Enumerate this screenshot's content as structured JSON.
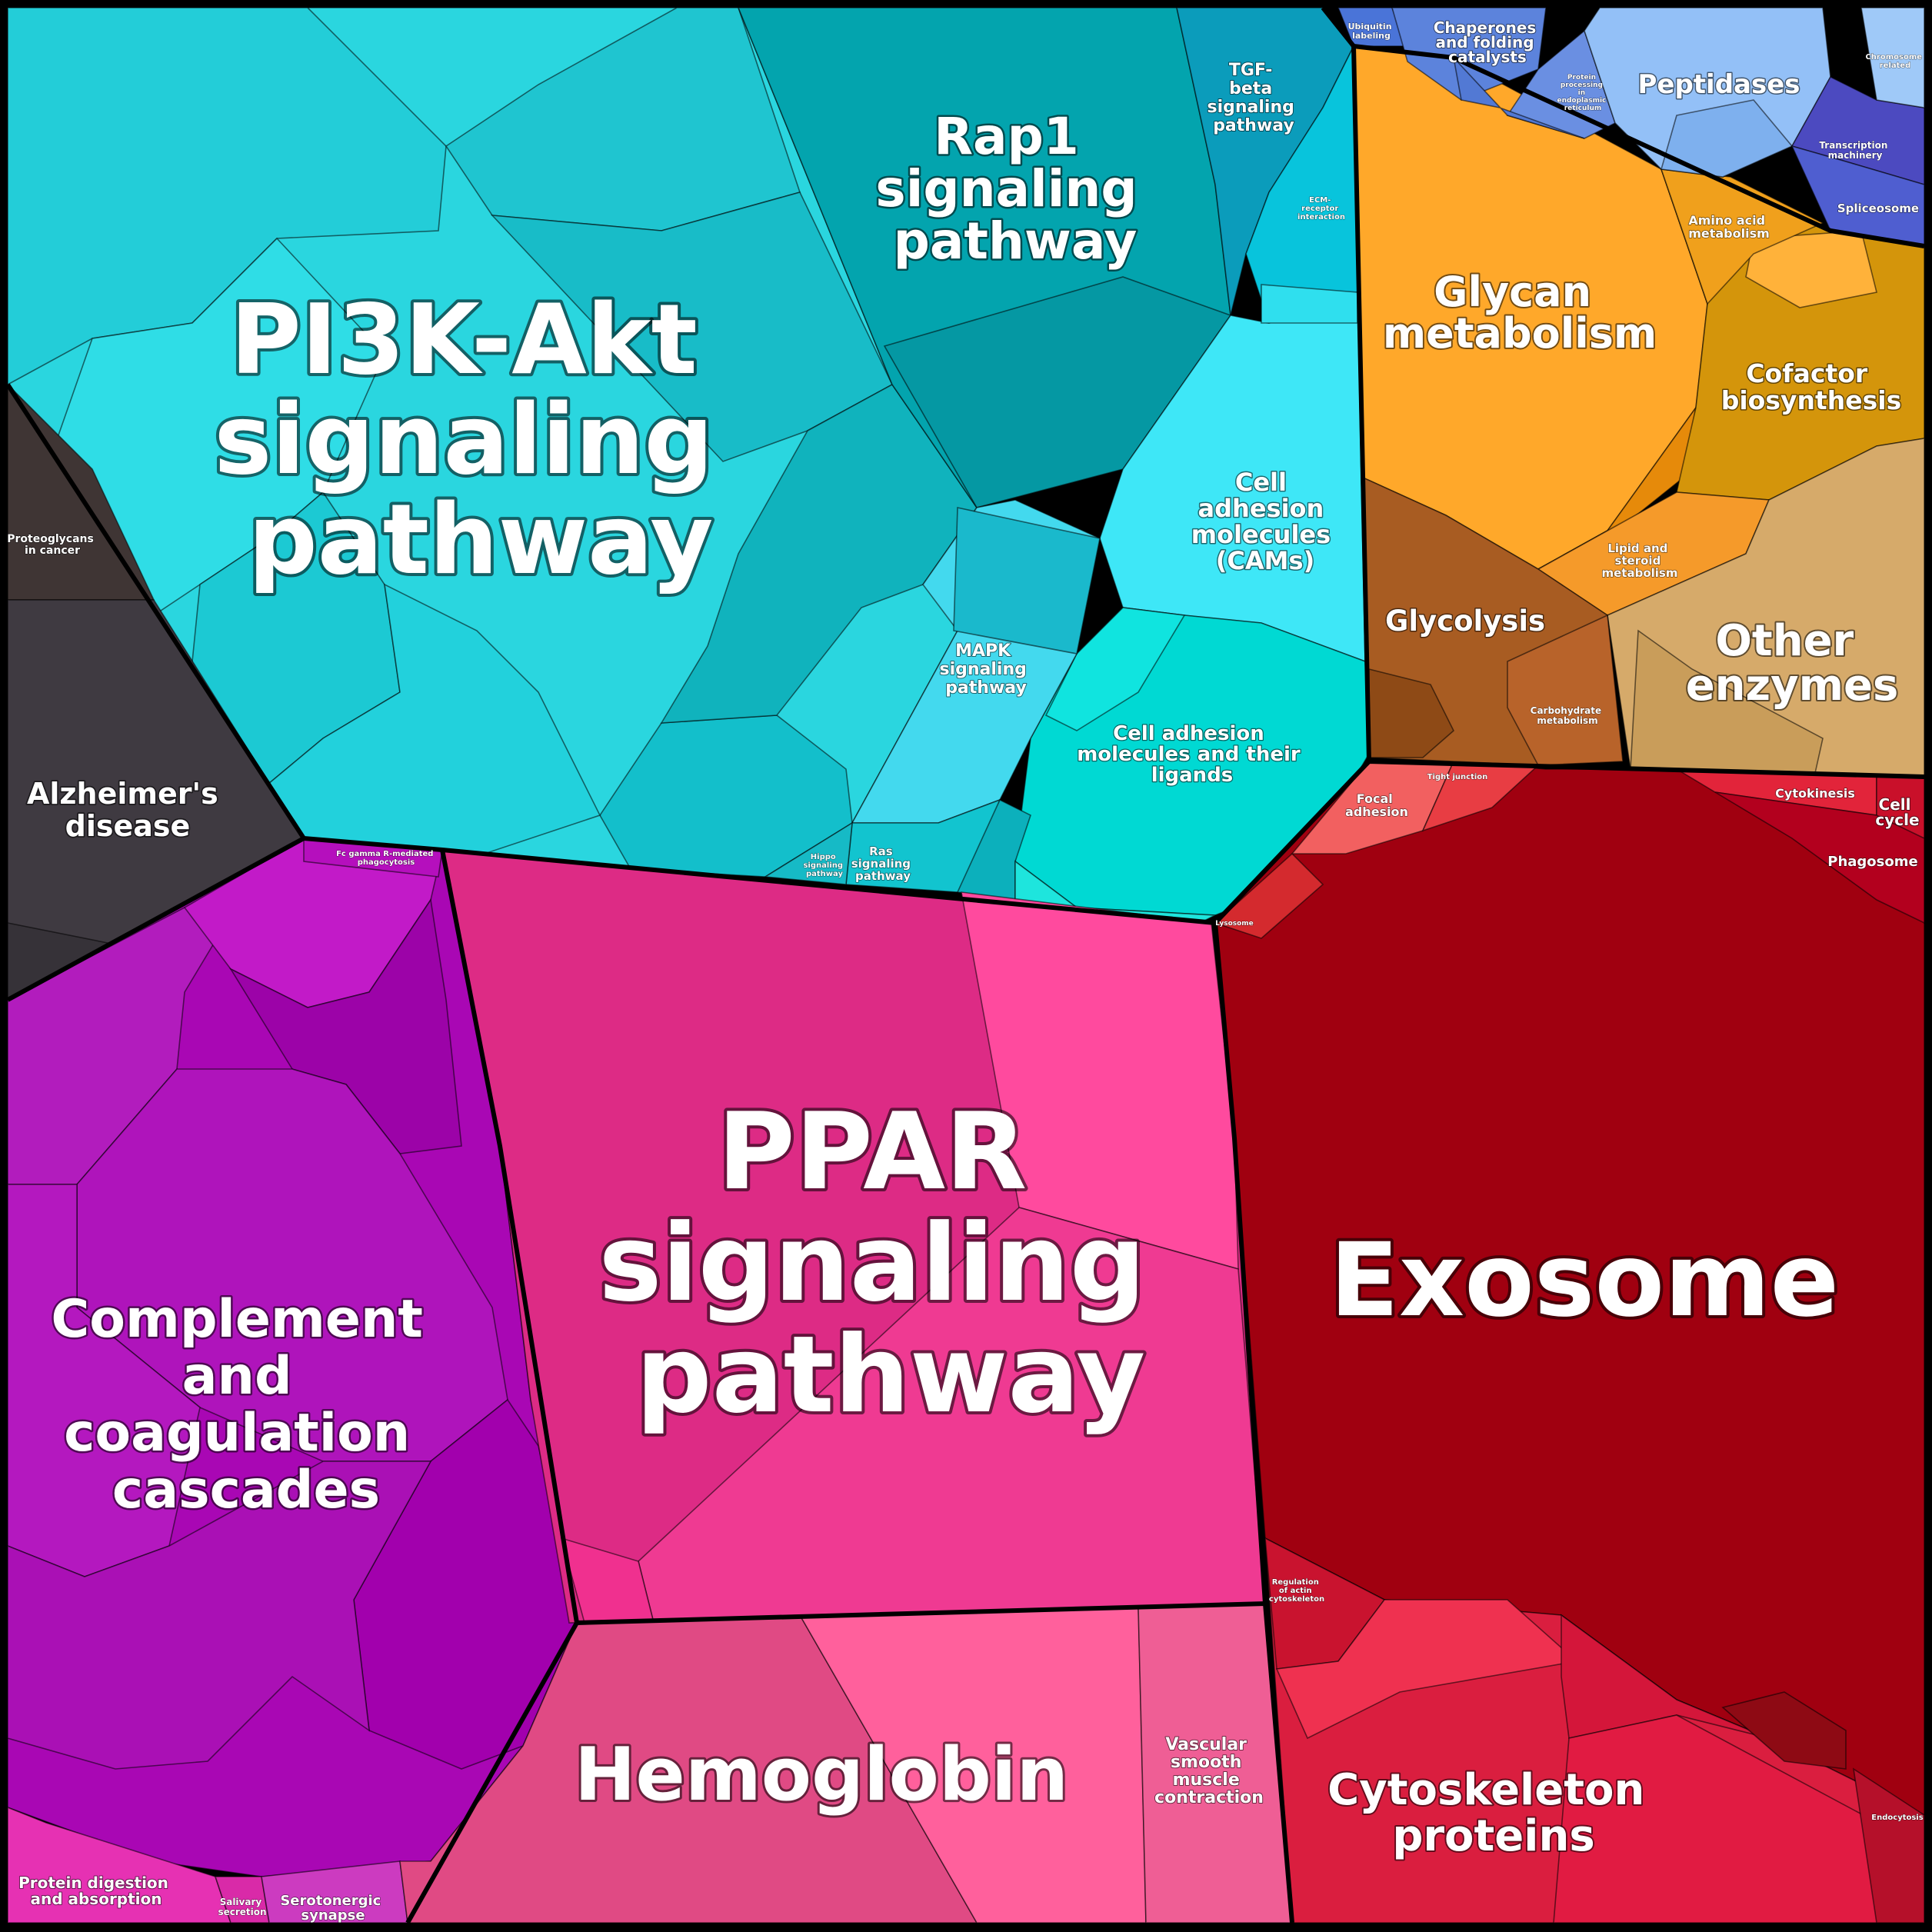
{
  "diagram": {
    "type": "voronoi-treemap",
    "colors": {
      "pi3k_akt": "#2ad6df",
      "rap1": "#03a4ae",
      "tgf_beta": "#0b9cbb",
      "cell_adhesion": "#3ee7f7",
      "cell_adhesion_ligands": "#00d9d3",
      "mapk": "#43d9ee",
      "alzheimers": "#3f3a41",
      "proteoglycans": "#3f3534",
      "complement": "#a907b4",
      "ppar": "#dd2b85",
      "hemoglobin": "#e04a84",
      "exosome": "#a00010",
      "cytoskeleton": "#da1e3f",
      "glycan": "#ffa82a",
      "cofactor": "#d4950b",
      "other_enzymes": "#d6aa6a",
      "glycolysis": "#a85c22",
      "peptidases": "#93c0f7",
      "chaperones": "#5c83dc",
      "spliceosome": "#4c4ac0",
      "protein_digestion": "#e631b3"
    },
    "labels": {
      "pi3k_akt": [
        "PI3K-Akt",
        "signaling",
        "pathway"
      ],
      "rap1": [
        "Rap1",
        "signaling",
        "pathway"
      ],
      "tgf_beta": [
        "TGF-",
        "beta",
        "signaling",
        "pathway"
      ],
      "cell_adhesion_cams": [
        "Cell",
        "adhesion",
        "molecules",
        "(CAMs)"
      ],
      "cell_adhesion_ligands": [
        "Cell adhesion",
        "molecules and their",
        "ligands"
      ],
      "mapk": [
        "MAPK",
        "signaling",
        "pathway"
      ],
      "ras": [
        "Ras",
        "signaling",
        "pathway"
      ],
      "hippo": [
        "Hippo",
        "signaling",
        "pathway"
      ],
      "ecm_receptor": [
        "ECM-",
        "receptor",
        "interaction"
      ],
      "alzheimers": [
        "Alzheimer's",
        "disease"
      ],
      "proteoglycans": [
        "Proteoglycans",
        "in cancer"
      ],
      "fc_gamma": [
        "Fc gamma R-mediated",
        "phagocytosis"
      ],
      "complement": [
        "Complement",
        "and",
        "coagulation",
        "cascades"
      ],
      "ppar": [
        "PPAR",
        "signaling",
        "pathway"
      ],
      "hemoglobin": [
        "Hemoglobin"
      ],
      "vascular": [
        "Vascular",
        "smooth",
        "muscle",
        "contraction"
      ],
      "protein_digestion": [
        "Protein digestion",
        "and absorption"
      ],
      "salivary": [
        "Salivary",
        "secretion"
      ],
      "serotonergic": [
        "Serotonergic",
        "synapse"
      ],
      "exosome": [
        "Exosome"
      ],
      "focal_adhesion": [
        "Focal",
        "adhesion"
      ],
      "tight_junction": [
        "Tight junction"
      ],
      "lysosome": [
        "Lysosome"
      ],
      "cytokinesis": [
        "Cytokinesis"
      ],
      "cell_cycle": [
        "Cell",
        "cycle"
      ],
      "phagosome": [
        "Phagosome"
      ],
      "regulation_actin": [
        "Regulation",
        "of actin",
        "cytoskeleton"
      ],
      "cytoskeleton": [
        "Cytoskeleton",
        "proteins"
      ],
      "endocytosis": [
        "Endocytosis"
      ],
      "glycan": [
        "Glycan",
        "metabolism"
      ],
      "cofactor": [
        "Cofactor",
        "biosynthesis"
      ],
      "amino_acid": [
        "Amino acid",
        "metabolism"
      ],
      "lipid_steroid": [
        "Lipid and",
        "steroid",
        "metabolism"
      ],
      "glycolysis": [
        "Glycolysis"
      ],
      "carbohydrate": [
        "Carbohydrate",
        "metabolism"
      ],
      "other_enzymes": [
        "Other",
        "enzymes"
      ],
      "ubiquitin": [
        "Ubiquitin",
        "labeling"
      ],
      "chaperones": [
        "Chaperones",
        "and folding",
        "catalysts"
      ],
      "protein_processing": [
        "Protein",
        "processing",
        "in",
        "endoplasmic",
        "reticulum"
      ],
      "peptidases": [
        "Peptidases"
      ],
      "transcription": [
        "Transcription",
        "machinery"
      ],
      "spliceosome": [
        "Spliceosome"
      ],
      "chromosome": [
        "Chromosome",
        "related"
      ]
    }
  }
}
